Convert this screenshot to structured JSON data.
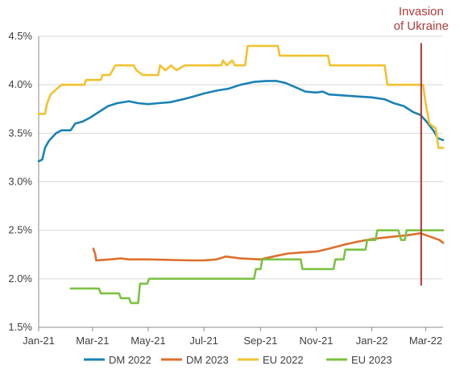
{
  "chart_data": {
    "type": "line",
    "title": "",
    "xlabel": "",
    "ylabel": "",
    "x_range": [
      "2021-01-01",
      "2022-03-20"
    ],
    "ylim": [
      1.5,
      4.5
    ],
    "x_tick_labels": [
      "Jan-21",
      "Mar-21",
      "May-21",
      "Jul-21",
      "Sep-21",
      "Nov-21",
      "Jan-22",
      "Mar-22"
    ],
    "y_tick_labels": [
      "1.5%",
      "2.0%",
      "2.5%",
      "3.0%",
      "3.5%",
      "4.0%",
      "4.5%"
    ],
    "grid": "horizontal",
    "legend_position": "bottom",
    "annotation": {
      "text_lines": [
        "Invasion",
        "of Ukraine"
      ],
      "x": "2022-02-24",
      "y_range": [
        1.93,
        4.43
      ],
      "color": "#a83232"
    },
    "series": [
      {
        "name": "DM 2022",
        "color": "#1b82b5",
        "points": [
          [
            "2021-01-01",
            3.21
          ],
          [
            "2021-01-05",
            3.23
          ],
          [
            "2021-01-08",
            3.35
          ],
          [
            "2021-01-12",
            3.42
          ],
          [
            "2021-01-16",
            3.46
          ],
          [
            "2021-01-20",
            3.5
          ],
          [
            "2021-01-26",
            3.53
          ],
          [
            "2021-02-05",
            3.53
          ],
          [
            "2021-02-10",
            3.6
          ],
          [
            "2021-02-18",
            3.62
          ],
          [
            "2021-02-26",
            3.66
          ],
          [
            "2021-03-08",
            3.72
          ],
          [
            "2021-03-18",
            3.78
          ],
          [
            "2021-03-28",
            3.81
          ],
          [
            "2021-04-10",
            3.83
          ],
          [
            "2021-04-20",
            3.81
          ],
          [
            "2021-05-01",
            3.8
          ],
          [
            "2021-05-12",
            3.81
          ],
          [
            "2021-05-25",
            3.82
          ],
          [
            "2021-06-08",
            3.85
          ],
          [
            "2021-06-20",
            3.88
          ],
          [
            "2021-07-01",
            3.91
          ],
          [
            "2021-07-15",
            3.94
          ],
          [
            "2021-07-28",
            3.96
          ],
          [
            "2021-08-10",
            4.0
          ],
          [
            "2021-08-25",
            4.03
          ],
          [
            "2021-09-08",
            4.04
          ],
          [
            "2021-09-18",
            4.04
          ],
          [
            "2021-09-28",
            4.02
          ],
          [
            "2021-10-08",
            3.98
          ],
          [
            "2021-10-20",
            3.93
          ],
          [
            "2021-11-01",
            3.92
          ],
          [
            "2021-11-08",
            3.93
          ],
          [
            "2021-11-15",
            3.9
          ],
          [
            "2021-12-01",
            3.89
          ],
          [
            "2021-12-15",
            3.88
          ],
          [
            "2022-01-01",
            3.87
          ],
          [
            "2022-01-15",
            3.85
          ],
          [
            "2022-01-25",
            3.81
          ],
          [
            "2022-02-05",
            3.78
          ],
          [
            "2022-02-15",
            3.72
          ],
          [
            "2022-02-23",
            3.69
          ],
          [
            "2022-03-01",
            3.63
          ],
          [
            "2022-03-10",
            3.52
          ],
          [
            "2022-03-14",
            3.45
          ],
          [
            "2022-03-20",
            3.43
          ]
        ]
      },
      {
        "name": "DM 2023",
        "color": "#dd6f2b",
        "points": [
          [
            "2021-03-02",
            2.31
          ],
          [
            "2021-03-04",
            2.25
          ],
          [
            "2021-03-05",
            2.19
          ],
          [
            "2021-03-20",
            2.2
          ],
          [
            "2021-04-01",
            2.21
          ],
          [
            "2021-04-10",
            2.2
          ],
          [
            "2021-05-01",
            2.2
          ],
          [
            "2021-06-15",
            2.19
          ],
          [
            "2021-07-01",
            2.19
          ],
          [
            "2021-07-15",
            2.2
          ],
          [
            "2021-07-25",
            2.23
          ],
          [
            "2021-08-10",
            2.21
          ],
          [
            "2021-09-01",
            2.2
          ],
          [
            "2021-09-15",
            2.23
          ],
          [
            "2021-10-01",
            2.26
          ],
          [
            "2021-10-15",
            2.27
          ],
          [
            "2021-11-01",
            2.28
          ],
          [
            "2021-11-15",
            2.31
          ],
          [
            "2021-12-01",
            2.35
          ],
          [
            "2021-12-15",
            2.38
          ],
          [
            "2022-01-01",
            2.41
          ],
          [
            "2022-01-20",
            2.43
          ],
          [
            "2022-02-10",
            2.45
          ],
          [
            "2022-02-23",
            2.47
          ],
          [
            "2022-03-01",
            2.45
          ],
          [
            "2022-03-10",
            2.42
          ],
          [
            "2022-03-16",
            2.4
          ],
          [
            "2022-03-20",
            2.37
          ]
        ]
      },
      {
        "name": "EU 2022",
        "color": "#f2c12e",
        "points": [
          [
            "2021-01-01",
            3.7
          ],
          [
            "2021-01-08",
            3.7
          ],
          [
            "2021-01-10",
            3.8
          ],
          [
            "2021-01-14",
            3.9
          ],
          [
            "2021-01-20",
            3.95
          ],
          [
            "2021-01-26",
            4.0
          ],
          [
            "2021-02-20",
            4.0
          ],
          [
            "2021-02-22",
            4.05
          ],
          [
            "2021-03-10",
            4.05
          ],
          [
            "2021-03-12",
            4.1
          ],
          [
            "2021-03-20",
            4.1
          ],
          [
            "2021-03-26",
            4.2
          ],
          [
            "2021-04-15",
            4.2
          ],
          [
            "2021-04-18",
            4.15
          ],
          [
            "2021-04-25",
            4.1
          ],
          [
            "2021-05-12",
            4.1
          ],
          [
            "2021-05-14",
            4.2
          ],
          [
            "2021-05-20",
            4.15
          ],
          [
            "2021-05-26",
            4.2
          ],
          [
            "2021-06-01",
            4.15
          ],
          [
            "2021-06-10",
            4.2
          ],
          [
            "2021-07-20",
            4.2
          ],
          [
            "2021-07-22",
            4.25
          ],
          [
            "2021-07-26",
            4.2
          ],
          [
            "2021-08-01",
            4.25
          ],
          [
            "2021-08-04",
            4.2
          ],
          [
            "2021-08-15",
            4.2
          ],
          [
            "2021-08-18",
            4.4
          ],
          [
            "2021-09-20",
            4.4
          ],
          [
            "2021-09-22",
            4.3
          ],
          [
            "2021-11-14",
            4.3
          ],
          [
            "2021-11-16",
            4.2
          ],
          [
            "2022-01-15",
            4.2
          ],
          [
            "2022-01-18",
            4.0
          ],
          [
            "2022-02-26",
            4.0
          ],
          [
            "2022-03-01",
            3.8
          ],
          [
            "2022-03-05",
            3.6
          ],
          [
            "2022-03-12",
            3.55
          ],
          [
            "2022-03-15",
            3.35
          ],
          [
            "2022-03-20",
            3.35
          ]
        ]
      },
      {
        "name": "EU 2023",
        "color": "#7cc242",
        "points": [
          [
            "2021-02-05",
            1.9
          ],
          [
            "2021-03-08",
            1.9
          ],
          [
            "2021-03-10",
            1.85
          ],
          [
            "2021-03-30",
            1.85
          ],
          [
            "2021-04-01",
            1.8
          ],
          [
            "2021-04-10",
            1.8
          ],
          [
            "2021-04-12",
            1.75
          ],
          [
            "2021-04-20",
            1.75
          ],
          [
            "2021-04-22",
            1.95
          ],
          [
            "2021-04-30",
            1.95
          ],
          [
            "2021-05-02",
            2.0
          ],
          [
            "2021-08-25",
            2.0
          ],
          [
            "2021-08-27",
            2.1
          ],
          [
            "2021-09-01",
            2.1
          ],
          [
            "2021-09-03",
            2.2
          ],
          [
            "2021-10-15",
            2.2
          ],
          [
            "2021-10-17",
            2.1
          ],
          [
            "2021-11-20",
            2.1
          ],
          [
            "2021-11-22",
            2.2
          ],
          [
            "2021-12-01",
            2.2
          ],
          [
            "2021-12-03",
            2.3
          ],
          [
            "2021-12-25",
            2.3
          ],
          [
            "2021-12-27",
            2.4
          ],
          [
            "2022-01-05",
            2.4
          ],
          [
            "2022-01-07",
            2.5
          ],
          [
            "2022-01-30",
            2.5
          ],
          [
            "2022-02-02",
            2.4
          ],
          [
            "2022-02-06",
            2.4
          ],
          [
            "2022-02-08",
            2.5
          ],
          [
            "2022-03-20",
            2.5
          ]
        ]
      }
    ]
  }
}
